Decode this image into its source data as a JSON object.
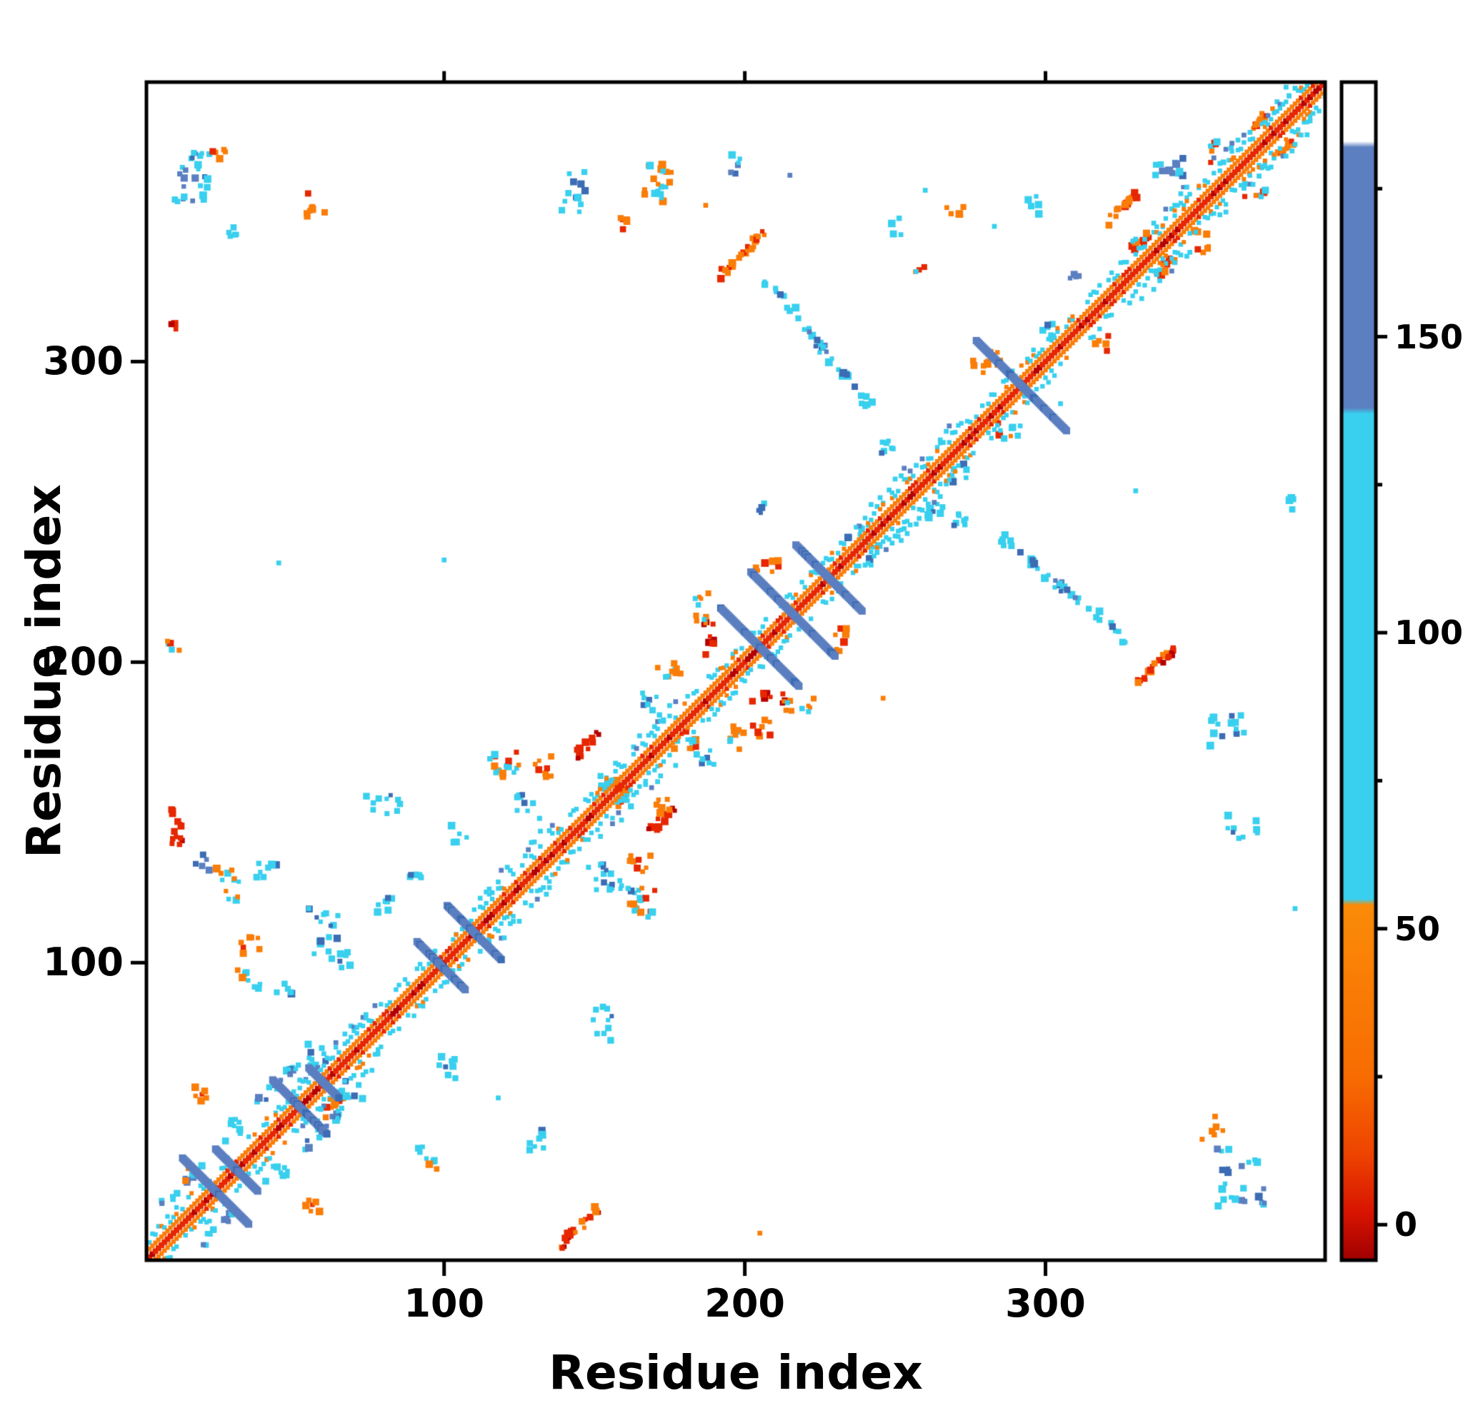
{
  "chart_data": {
    "type": "heatmap",
    "title": "",
    "xlabel": "Residue index",
    "ylabel": "Residue index",
    "xlim": [
      1,
      393
    ],
    "ylim": [
      1,
      393
    ],
    "x_ticks": [
      100,
      200,
      300
    ],
    "y_ticks": [
      100,
      200,
      300
    ],
    "grid": false,
    "legend": null,
    "seed": 42,
    "palette": {
      "red": "#e62700",
      "dark_red": "#b50000",
      "orange": "#fa7d08",
      "cyan": "#38d0ee",
      "blue": "#5b7fc0",
      "dark_blue": "#3c6cb4",
      "frame": "#000000",
      "background": "#ffffff"
    },
    "colorbar": {
      "labels": [
        150,
        100,
        50,
        0
      ],
      "tick_values": [
        150,
        100,
        50,
        0
      ],
      "minor_tick_values": [
        175,
        125,
        75,
        25
      ],
      "vmin": -6,
      "vmax": 193,
      "stops": [
        {
          "v": -6,
          "color": "#a00000"
        },
        {
          "v": 2,
          "color": "#d81400"
        },
        {
          "v": 12,
          "color": "#ee4400"
        },
        {
          "v": 25,
          "color": "#f86c02"
        },
        {
          "v": 54,
          "color": "#fb8b08"
        },
        {
          "v": 55,
          "color": "#38d0ee"
        },
        {
          "v": 137,
          "color": "#38d0ee"
        },
        {
          "v": 138,
          "color": "#5b7fc0"
        },
        {
          "v": 182,
          "color": "#5b7fc0"
        },
        {
          "v": 183,
          "color": "#ffffff"
        },
        {
          "v": 193,
          "color": "#ffffff"
        }
      ]
    },
    "diagonal": {
      "core_halfwidth": 1.9,
      "orange_offset": 2.8,
      "cyan_min": 4.5,
      "cyan_max": 8.0,
      "cyan_p": 0.6,
      "wide_zones": [
        [
          52,
          78
        ],
        [
          112,
          136
        ],
        [
          152,
          178
        ],
        [
          238,
          268
        ],
        [
          328,
          348
        ],
        [
          356,
          388
        ]
      ]
    },
    "hairpins": [
      [
        24,
        11
      ],
      [
        31,
        7
      ],
      [
        52,
        9
      ],
      [
        60,
        5
      ],
      [
        99,
        8
      ],
      [
        110,
        9
      ],
      [
        205,
        13
      ],
      [
        216,
        14
      ],
      [
        228,
        11
      ],
      [
        292,
        15
      ]
    ],
    "clusters": [
      [
        16,
        362,
        6,
        9,
        "n",
        "mix_cb",
        26,
        0
      ],
      [
        26,
        369,
        3,
        2,
        "n",
        "orange",
        5,
        0
      ],
      [
        57,
        352,
        4,
        4,
        "n",
        "orange",
        7,
        0
      ],
      [
        30,
        344,
        3,
        3,
        "n",
        "cyan",
        5,
        0
      ],
      [
        10,
        311,
        1,
        2,
        "n",
        "red",
        3,
        0
      ],
      [
        143,
        357,
        4,
        8,
        "n",
        "cyan",
        12,
        0
      ],
      [
        172,
        359,
        6,
        7,
        "n",
        "mix_co",
        20,
        0
      ],
      [
        160,
        345,
        3,
        3,
        "n",
        "orange",
        5,
        0
      ],
      [
        197,
        366,
        2,
        4,
        "n",
        "mix_cb",
        6,
        0
      ],
      [
        199,
        336,
        8,
        2,
        "d",
        "orange_red",
        24,
        0
      ],
      [
        211,
        322,
        5,
        2,
        "a",
        "cyan",
        9,
        1
      ],
      [
        221,
        310,
        7,
        2,
        "a",
        "mix_cb",
        12,
        1
      ],
      [
        232,
        297,
        6,
        2,
        "a",
        "cyan",
        10,
        1
      ],
      [
        240,
        286,
        3,
        3,
        "n",
        "cyan",
        7,
        1
      ],
      [
        248,
        272,
        3,
        4,
        "n",
        "cyan",
        7,
        1
      ],
      [
        205,
        251,
        2,
        2,
        "n",
        "cyan",
        4,
        0
      ],
      [
        280,
        300,
        5,
        4,
        "n",
        "orange",
        10,
        0
      ],
      [
        262,
        252,
        4,
        4,
        "n",
        "cyan",
        9,
        0
      ],
      [
        271,
        263,
        3,
        3,
        "n",
        "cyan",
        6,
        0
      ],
      [
        288,
        277,
        4,
        3,
        "n",
        "mix_co",
        8,
        0
      ],
      [
        300,
        311,
        3,
        4,
        "n",
        "cyan",
        6,
        0
      ],
      [
        318,
        306,
        3,
        3,
        "n",
        "orange",
        5,
        0
      ],
      [
        270,
        350,
        3,
        3,
        "n",
        "orange",
        4,
        0
      ],
      [
        325,
        351,
        5,
        2,
        "d",
        "orange_red",
        16,
        0
      ],
      [
        333,
        341,
        4,
        2,
        "d",
        "red_orange",
        10,
        1
      ],
      [
        341,
        362,
        5,
        6,
        "n",
        "mix_cb",
        14,
        0
      ],
      [
        352,
        340,
        4,
        4,
        "n",
        "orange",
        7,
        0
      ],
      [
        370,
        358,
        4,
        5,
        "n",
        "mix_co",
        10,
        1
      ],
      [
        381,
        372,
        4,
        2,
        "d",
        "orange_red",
        10,
        1
      ],
      [
        337,
        199,
        6,
        2,
        "d",
        "red_orange",
        22,
        0
      ],
      [
        360,
        177,
        6,
        6,
        "n",
        "mix_cb",
        16,
        0
      ],
      [
        365,
        145,
        6,
        4,
        "n",
        "cyan",
        10,
        0
      ],
      [
        383,
        252,
        2,
        3,
        "n",
        "cyan",
        4,
        0
      ],
      [
        11,
        144,
        2,
        7,
        "n",
        "red",
        14,
        0
      ],
      [
        145,
        12,
        7,
        2,
        "d",
        "red_orange",
        18,
        0
      ],
      [
        28,
        126,
        5,
        6,
        "n",
        "mix_co",
        12,
        0
      ],
      [
        20,
        133,
        3,
        3,
        "n",
        "blue",
        5,
        0
      ],
      [
        35,
        105,
        4,
        4,
        "n",
        "orange",
        7,
        0
      ],
      [
        60,
        110,
        5,
        8,
        "n",
        "cyan",
        14,
        0
      ],
      [
        80,
        120,
        4,
        4,
        "n",
        "cyan",
        8,
        0
      ],
      [
        47,
        92,
        3,
        3,
        "n",
        "cyan",
        5,
        0
      ],
      [
        10,
        205,
        2,
        3,
        "n",
        "mix_co",
        4,
        0
      ],
      [
        120,
        166,
        5,
        5,
        "n",
        "mix_co",
        16,
        1
      ],
      [
        133,
        165,
        3,
        4,
        "n",
        "orange",
        8,
        1
      ],
      [
        147,
        172,
        4,
        2,
        "d",
        "red",
        12,
        1
      ],
      [
        128,
        152,
        4,
        4,
        "n",
        "cyan",
        8,
        1
      ],
      [
        158,
        127,
        6,
        2,
        "a",
        "cyan",
        10,
        0
      ],
      [
        172,
        152,
        3,
        3,
        "n",
        "orange",
        6,
        0
      ],
      [
        152,
        80,
        4,
        6,
        "n",
        "cyan",
        10,
        1
      ],
      [
        100,
        65,
        4,
        4,
        "n",
        "cyan",
        8,
        1
      ],
      [
        63,
        52,
        4,
        2,
        "d",
        "orange_red",
        10,
        0
      ],
      [
        60,
        45,
        6,
        3,
        "d",
        "mix_cb",
        16,
        1
      ],
      [
        68,
        58,
        5,
        4,
        "n",
        "cyan",
        10,
        1
      ],
      [
        44,
        30,
        4,
        3,
        "n",
        "cyan",
        8,
        1
      ],
      [
        95,
        35,
        4,
        4,
        "n",
        "mix_co",
        8,
        1
      ],
      [
        130,
        42,
        4,
        5,
        "n",
        "cyan",
        8,
        1
      ],
      [
        57,
        18,
        3,
        3,
        "n",
        "orange",
        6,
        1
      ],
      [
        25,
        12,
        6,
        2,
        "d",
        "mix_cb",
        12,
        1
      ],
      [
        18,
        30,
        4,
        3,
        "n",
        "mix_co",
        8,
        0
      ],
      [
        365,
        28,
        8,
        10,
        "n",
        "mix_cb",
        24,
        0
      ],
      [
        355,
        45,
        4,
        4,
        "n",
        "orange",
        6,
        0
      ],
      [
        188,
        208,
        2,
        6,
        "n",
        "red",
        10,
        1
      ],
      [
        185,
        218,
        3,
        5,
        "n",
        "mix_co",
        10,
        1
      ],
      [
        232,
        208,
        2,
        5,
        "n",
        "orange",
        8,
        1
      ],
      [
        175,
        196,
        4,
        4,
        "n",
        "mix_co",
        10,
        1
      ],
      [
        168,
        186,
        4,
        4,
        "n",
        "cyan",
        8,
        1
      ],
      [
        180,
        174,
        4,
        3,
        "n",
        "mix_co",
        8,
        0
      ],
      [
        205,
        178,
        4,
        3,
        "n",
        "orange",
        8,
        0
      ],
      [
        155,
        160,
        4,
        4,
        "n",
        "mix_co",
        12,
        1
      ],
      [
        250,
        345,
        3,
        3,
        "n",
        "cyan",
        4,
        0
      ],
      [
        258,
        330,
        2,
        2,
        "n",
        "orange",
        3,
        0
      ],
      [
        296,
        352,
        3,
        3,
        "n",
        "cyan",
        5,
        0
      ],
      [
        310,
        330,
        2,
        3,
        "n",
        "blue",
        4,
        0
      ],
      [
        243,
        237,
        3,
        3,
        "n",
        "cyan",
        6,
        1
      ],
      [
        90,
        130,
        3,
        3,
        "n",
        "cyan",
        5,
        0
      ],
      [
        105,
        143,
        3,
        3,
        "n",
        "cyan",
        5,
        0
      ]
    ],
    "dots": [
      [
        45,
        233,
        "cyan"
      ],
      [
        100,
        234,
        "cyan"
      ],
      [
        205,
        10,
        "orange"
      ],
      [
        8,
        207,
        "orange"
      ],
      [
        383,
        118,
        "cyan"
      ],
      [
        260,
        357,
        "cyan"
      ],
      [
        283,
        345,
        "cyan"
      ],
      [
        215,
        362,
        "blue"
      ],
      [
        330,
        257,
        "cyan"
      ],
      [
        257,
        330,
        "cyan"
      ],
      [
        118,
        55,
        "cyan"
      ],
      [
        55,
        118,
        "cyan"
      ],
      [
        305,
        286,
        "cyan"
      ],
      [
        246,
        188,
        "orange"
      ],
      [
        187,
        352,
        "orange"
      ]
    ]
  }
}
